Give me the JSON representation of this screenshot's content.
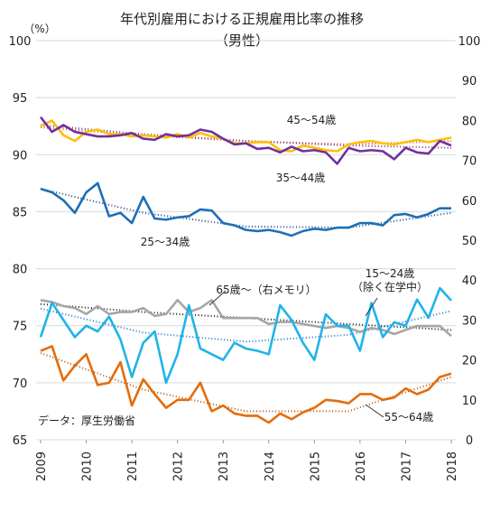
{
  "chart_data": {
    "type": "line",
    "title": "年代別雇用における正規雇用比率の推移",
    "subtitle": "（男性）",
    "y_unit": "（%）",
    "source": "データ：厚生労働省",
    "xlim": [
      2009,
      2018
    ],
    "xticks": [
      2009,
      2010,
      2011,
      2012,
      2013,
      2014,
      2015,
      2016,
      2017,
      2018
    ],
    "ylim": [
      65,
      100
    ],
    "yticks": [
      65,
      70,
      75,
      80,
      85,
      90,
      95,
      100
    ],
    "y2lim": [
      0,
      100
    ],
    "y2ticks": [
      0,
      10,
      20,
      30,
      40,
      50,
      60,
      70,
      80,
      90,
      100
    ],
    "grid": true,
    "x": [
      2009,
      2009.25,
      2009.5,
      2009.75,
      2010,
      2010.25,
      2010.5,
      2010.75,
      2011,
      2011.25,
      2011.5,
      2011.75,
      2012,
      2012.25,
      2012.5,
      2012.75,
      2013,
      2013.25,
      2013.5,
      2013.75,
      2014,
      2014.25,
      2014.5,
      2014.75,
      2015,
      2015.25,
      2015.5,
      2015.75,
      2016,
      2016.25,
      2016.5,
      2016.75,
      2017,
      2017.25,
      2017.5,
      2017.75,
      2018
    ],
    "series": [
      {
        "name": "45～54歳",
        "color": "#ffc000",
        "values": [
          92.5,
          93.0,
          91.7,
          91.2,
          92.0,
          92.2,
          91.8,
          91.8,
          91.6,
          91.7,
          91.6,
          91.5,
          91.8,
          91.5,
          91.9,
          91.6,
          91.4,
          91.0,
          91.0,
          91.1,
          91.1,
          90.4,
          90.3,
          90.8,
          90.6,
          90.4,
          90.3,
          90.9,
          91.1,
          91.2,
          91.0,
          90.9,
          91.1,
          91.3,
          91.1,
          91.3,
          91.5
        ]
      },
      {
        "name": "35～44歳",
        "color": "#7030a0",
        "values": [
          93.3,
          92.0,
          92.6,
          92.0,
          91.8,
          91.6,
          91.6,
          91.7,
          91.9,
          91.4,
          91.3,
          91.8,
          91.6,
          91.7,
          92.2,
          92.0,
          91.4,
          90.9,
          91.0,
          90.5,
          90.6,
          90.2,
          90.7,
          90.3,
          90.4,
          90.2,
          89.2,
          90.6,
          90.3,
          90.4,
          90.3,
          89.6,
          90.6,
          90.2,
          90.1,
          91.2,
          90.8
        ]
      },
      {
        "name": "25～34歳",
        "color": "#1f6fb5",
        "values": [
          87.0,
          86.7,
          86.0,
          84.9,
          86.7,
          87.5,
          84.6,
          84.9,
          84.0,
          86.3,
          84.4,
          84.3,
          84.5,
          84.6,
          85.2,
          85.1,
          84.0,
          83.8,
          83.4,
          83.3,
          83.4,
          83.2,
          82.9,
          83.3,
          83.5,
          83.4,
          83.6,
          83.6,
          84.0,
          84.0,
          83.8,
          84.7,
          84.8,
          84.5,
          84.8,
          85.3,
          85.3
        ]
      },
      {
        "name": "65歳～（右メモリ）",
        "color": "#a6a6a6",
        "axis": "y2",
        "values": [
          35,
          34.5,
          33.5,
          33,
          31.5,
          33.5,
          31.5,
          32,
          32,
          33,
          31,
          31.5,
          35,
          32,
          33,
          35,
          30.5,
          30.5,
          30.5,
          30.5,
          29,
          29.5,
          29.5,
          29,
          28.5,
          28,
          28.5,
          28,
          27,
          28,
          27.5,
          26.5,
          27.5,
          28.5,
          28.5,
          28.5,
          26
        ]
      },
      {
        "name": "15～24歳",
        "note": "（除く在学中）",
        "color": "#1fb4e8",
        "values": [
          74.0,
          77.0,
          75.5,
          74.0,
          75.0,
          74.5,
          75.8,
          73.8,
          70.5,
          73.5,
          74.5,
          70.0,
          72.5,
          76.8,
          73.0,
          72.5,
          72.0,
          73.5,
          73.0,
          72.8,
          72.5,
          76.8,
          75.5,
          73.5,
          72.0,
          76.0,
          75.0,
          75.0,
          72.8,
          77.0,
          74.0,
          75.3,
          75.0,
          77.3,
          75.7,
          78.3,
          77.2
        ]
      },
      {
        "name": "55～64歳",
        "color": "#e46c0a",
        "values": [
          72.8,
          73.2,
          70.2,
          71.5,
          72.5,
          69.8,
          70.0,
          71.8,
          68.0,
          70.3,
          69.0,
          67.8,
          68.5,
          68.5,
          70.0,
          67.5,
          68.0,
          67.3,
          67.1,
          67.1,
          66.5,
          67.3,
          66.8,
          67.4,
          67.8,
          68.5,
          68.4,
          68.2,
          69.0,
          69.0,
          68.5,
          68.7,
          69.5,
          69.0,
          69.4,
          70.5,
          70.8
        ]
      }
    ],
    "trends": [
      {
        "color": "#c0504d",
        "x": [
          2009,
          2011.25,
          2013.5,
          2015.75,
          2018
        ],
        "values": [
          92.4,
          91.7,
          91.2,
          90.9,
          91.2
        ]
      },
      {
        "color": "#7f3f6f",
        "x": [
          2009,
          2011.25,
          2013.5,
          2015.75,
          2018
        ],
        "values": [
          92.6,
          91.8,
          91.2,
          90.8,
          90.6
        ]
      },
      {
        "color": "#1f4e9a",
        "x": [
          2009,
          2011.25,
          2013.5,
          2015.75,
          2018
        ],
        "values": [
          87.0,
          84.9,
          83.7,
          83.6,
          84.9
        ]
      },
      {
        "color": "#222222",
        "axis": "y2",
        "x": [
          2009,
          2011.25,
          2013.5,
          2015.75,
          2018
        ],
        "values": [
          34,
          32,
          30.5,
          29,
          27.5
        ]
      },
      {
        "color": "#2e75d6",
        "x": [
          2009,
          2011.25,
          2013.5,
          2015.75,
          2018
        ],
        "values": [
          76.5,
          74.4,
          73.6,
          74.2,
          76.3
        ]
      },
      {
        "color": "#b35a1a",
        "x": [
          2009,
          2011.25,
          2013.5,
          2015.75,
          2018
        ],
        "values": [
          72.6,
          69.4,
          67.5,
          67.5,
          70.5
        ]
      }
    ]
  }
}
